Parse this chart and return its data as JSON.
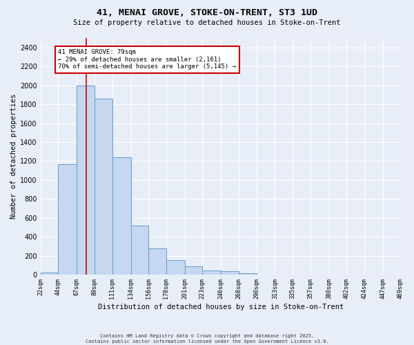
{
  "title_line1": "41, MENAI GROVE, STOKE-ON-TRENT, ST3 1UD",
  "title_line2": "Size of property relative to detached houses in Stoke-on-Trent",
  "xlabel": "Distribution of detached houses by size in Stoke-on-Trent",
  "ylabel": "Number of detached properties",
  "bin_edges": [
    22,
    44,
    67,
    89,
    111,
    134,
    156,
    178,
    201,
    223,
    246,
    268,
    290,
    313,
    335,
    357,
    380,
    402,
    424,
    447,
    469
  ],
  "bar_heights": [
    25,
    1170,
    2000,
    1860,
    1240,
    520,
    275,
    155,
    90,
    45,
    35,
    18,
    5,
    5,
    5,
    5,
    5,
    5,
    5,
    5
  ],
  "bar_color": "#c5d8f0",
  "bar_edge_color": "#6699cc",
  "vline_x": 79,
  "vline_color": "#cc0000",
  "annotation_text": "41 MENAI GROVE: 79sqm\n← 29% of detached houses are smaller (2,161)\n70% of semi-detached houses are larger (5,145) →",
  "annotation_box_color": "#ffffff",
  "annotation_box_edge_color": "#cc0000",
  "ylim": [
    0,
    2500
  ],
  "yticks": [
    0,
    200,
    400,
    600,
    800,
    1000,
    1200,
    1400,
    1600,
    1800,
    2000,
    2200,
    2400
  ],
  "bg_color": "#e8eef8",
  "plot_bg_color": "#e8eef8",
  "footer_line1": "Contains HM Land Registry data © Crown copyright and database right 2025.",
  "footer_line2": "Contains public sector information licensed under the Open Government Licence v3.0."
}
